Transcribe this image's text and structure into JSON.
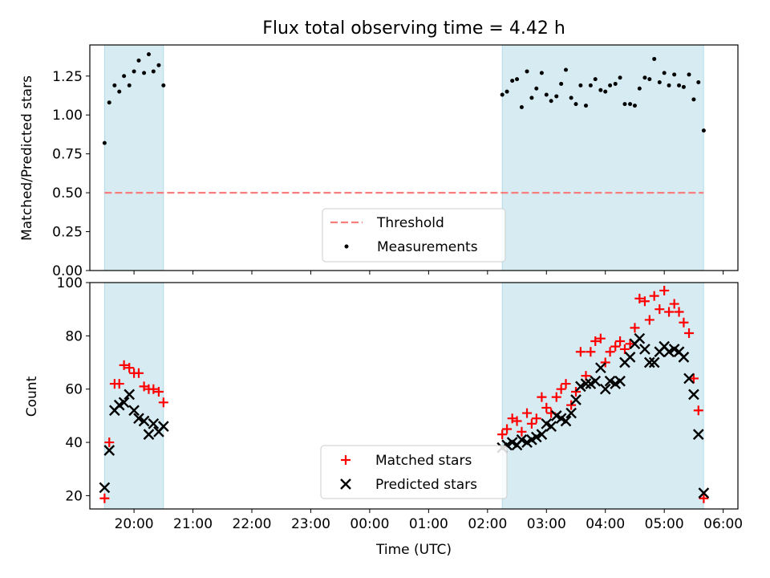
{
  "chart_data": [
    {
      "type": "scatter",
      "title": "Flux total observing time = 4.42 h",
      "xlabel": "",
      "ylabel": "Matched/Predicted stars",
      "xlim": [
        19.25,
        30.25
      ],
      "ylim": [
        0.0,
        1.45
      ],
      "yticks": [
        "0.00",
        "0.25",
        "0.50",
        "0.75",
        "1.00",
        "1.25"
      ],
      "shaded_spans": [
        [
          19.5,
          20.5
        ],
        [
          26.25,
          29.667
        ]
      ],
      "threshold": {
        "name": "Threshold",
        "value": 0.5,
        "x_range": [
          19.5,
          29.667
        ],
        "color": "#f87d7d"
      },
      "series": [
        {
          "name": "Measurements",
          "color": "#000000",
          "points": [
            [
              19.5,
              0.82
            ],
            [
              19.58,
              1.08
            ],
            [
              19.67,
              1.19
            ],
            [
              19.75,
              1.15
            ],
            [
              19.83,
              1.25
            ],
            [
              19.92,
              1.19
            ],
            [
              20.0,
              1.28
            ],
            [
              20.08,
              1.35
            ],
            [
              20.17,
              1.27
            ],
            [
              20.25,
              1.39
            ],
            [
              20.33,
              1.28
            ],
            [
              20.42,
              1.32
            ],
            [
              20.5,
              1.19
            ],
            [
              26.25,
              1.13
            ],
            [
              26.33,
              1.15
            ],
            [
              26.42,
              1.22
            ],
            [
              26.5,
              1.23
            ],
            [
              26.58,
              1.05
            ],
            [
              26.67,
              1.28
            ],
            [
              26.75,
              1.11
            ],
            [
              26.83,
              1.17
            ],
            [
              26.92,
              1.27
            ],
            [
              27.0,
              1.13
            ],
            [
              27.08,
              1.09
            ],
            [
              27.17,
              1.12
            ],
            [
              27.25,
              1.2
            ],
            [
              27.33,
              1.29
            ],
            [
              27.42,
              1.11
            ],
            [
              27.5,
              1.07
            ],
            [
              27.58,
              1.19
            ],
            [
              27.67,
              1.06
            ],
            [
              27.75,
              1.19
            ],
            [
              27.83,
              1.23
            ],
            [
              27.92,
              1.16
            ],
            [
              28.0,
              1.15
            ],
            [
              28.08,
              1.19
            ],
            [
              28.17,
              1.2
            ],
            [
              28.25,
              1.24
            ],
            [
              28.33,
              1.07
            ],
            [
              28.42,
              1.07
            ],
            [
              28.5,
              1.06
            ],
            [
              28.58,
              1.17
            ],
            [
              28.67,
              1.24
            ],
            [
              28.75,
              1.23
            ],
            [
              28.83,
              1.36
            ],
            [
              28.92,
              1.21
            ],
            [
              29.0,
              1.27
            ],
            [
              29.08,
              1.19
            ],
            [
              29.17,
              1.26
            ],
            [
              29.25,
              1.19
            ],
            [
              29.33,
              1.18
            ],
            [
              29.42,
              1.26
            ],
            [
              29.5,
              1.1
            ],
            [
              29.58,
              1.21
            ],
            [
              29.67,
              0.9
            ]
          ]
        }
      ],
      "legend": {
        "position": "lower center",
        "entries": [
          "Threshold",
          "Measurements"
        ]
      }
    },
    {
      "type": "scatter",
      "xlabel": "Time (UTC)",
      "ylabel": "Count",
      "xlim": [
        19.25,
        30.25
      ],
      "ylim": [
        15,
        100
      ],
      "yticks": [
        "20",
        "40",
        "60",
        "80",
        "100"
      ],
      "xticks": [
        {
          "value": 20,
          "label": "20:00"
        },
        {
          "value": 21,
          "label": "21:00"
        },
        {
          "value": 22,
          "label": "22:00"
        },
        {
          "value": 23,
          "label": "23:00"
        },
        {
          "value": 24,
          "label": "00:00"
        },
        {
          "value": 25,
          "label": "01:00"
        },
        {
          "value": 26,
          "label": "02:00"
        },
        {
          "value": 27,
          "label": "03:00"
        },
        {
          "value": 28,
          "label": "04:00"
        },
        {
          "value": 29,
          "label": "05:00"
        },
        {
          "value": 30,
          "label": "06:00"
        }
      ],
      "shaded_spans": [
        [
          19.5,
          20.5
        ],
        [
          26.25,
          29.667
        ]
      ],
      "series": [
        {
          "name": "Matched stars",
          "marker": "+",
          "color": "#ff0000",
          "points": [
            [
              19.5,
              19
            ],
            [
              19.58,
              40
            ],
            [
              19.67,
              62
            ],
            [
              19.75,
              62
            ],
            [
              19.83,
              69
            ],
            [
              19.92,
              68
            ],
            [
              20.0,
              66
            ],
            [
              20.08,
              66
            ],
            [
              20.17,
              61
            ],
            [
              20.25,
              60
            ],
            [
              20.33,
              60
            ],
            [
              20.42,
              59
            ],
            [
              20.5,
              55
            ],
            [
              26.25,
              43
            ],
            [
              26.33,
              45
            ],
            [
              26.42,
              49
            ],
            [
              26.5,
              48
            ],
            [
              26.58,
              44
            ],
            [
              26.67,
              51
            ],
            [
              26.75,
              47
            ],
            [
              26.83,
              49
            ],
            [
              26.92,
              57
            ],
            [
              27.0,
              53
            ],
            [
              27.08,
              51
            ],
            [
              27.17,
              57
            ],
            [
              27.25,
              60
            ],
            [
              27.33,
              62
            ],
            [
              27.42,
              54
            ],
            [
              27.5,
              59
            ],
            [
              27.58,
              74
            ],
            [
              27.67,
              65
            ],
            [
              27.75,
              74
            ],
            [
              27.83,
              78
            ],
            [
              27.92,
              79
            ],
            [
              28.0,
              70
            ],
            [
              28.08,
              74
            ],
            [
              28.17,
              76
            ],
            [
              28.25,
              78
            ],
            [
              28.33,
              75
            ],
            [
              28.42,
              77
            ],
            [
              28.5,
              83
            ],
            [
              28.58,
              94
            ],
            [
              28.67,
              93
            ],
            [
              28.75,
              86
            ],
            [
              28.83,
              95
            ],
            [
              28.92,
              90
            ],
            [
              29.0,
              97
            ],
            [
              29.08,
              89
            ],
            [
              29.17,
              92
            ],
            [
              29.25,
              89
            ],
            [
              29.33,
              85
            ],
            [
              29.42,
              81
            ],
            [
              29.5,
              64
            ],
            [
              29.58,
              52
            ],
            [
              29.67,
              19
            ]
          ]
        },
        {
          "name": "Predicted stars",
          "marker": "x",
          "color": "#000000",
          "points": [
            [
              19.5,
              23
            ],
            [
              19.58,
              37
            ],
            [
              19.67,
              52
            ],
            [
              19.75,
              54
            ],
            [
              19.83,
              55
            ],
            [
              19.92,
              58
            ],
            [
              20.0,
              52
            ],
            [
              20.08,
              49
            ],
            [
              20.17,
              48
            ],
            [
              20.25,
              43
            ],
            [
              20.33,
              47
            ],
            [
              20.42,
              44
            ],
            [
              20.5,
              46
            ],
            [
              26.25,
              38
            ],
            [
              26.33,
              39
            ],
            [
              26.42,
              40
            ],
            [
              26.5,
              39
            ],
            [
              26.58,
              41
            ],
            [
              26.67,
              40
            ],
            [
              26.75,
              41
            ],
            [
              26.83,
              42
            ],
            [
              26.92,
              43
            ],
            [
              27.0,
              47
            ],
            [
              27.08,
              46
            ],
            [
              27.17,
              50
            ],
            [
              27.25,
              49
            ],
            [
              27.33,
              48
            ],
            [
              27.42,
              51
            ],
            [
              27.5,
              56
            ],
            [
              27.58,
              61
            ],
            [
              27.67,
              62
            ],
            [
              27.75,
              62
            ],
            [
              27.83,
              63
            ],
            [
              27.92,
              68
            ],
            [
              28.0,
              60
            ],
            [
              28.08,
              63
            ],
            [
              28.17,
              62
            ],
            [
              28.25,
              63
            ],
            [
              28.33,
              70
            ],
            [
              28.42,
              72
            ],
            [
              28.5,
              77
            ],
            [
              28.58,
              79
            ],
            [
              28.67,
              75
            ],
            [
              28.75,
              70
            ],
            [
              28.83,
              70
            ],
            [
              28.92,
              74
            ],
            [
              29.0,
              76
            ],
            [
              29.08,
              74
            ],
            [
              29.17,
              75
            ],
            [
              29.25,
              74
            ],
            [
              29.33,
              72
            ],
            [
              29.42,
              64
            ],
            [
              29.5,
              58
            ],
            [
              29.58,
              43
            ],
            [
              29.67,
              21
            ]
          ]
        }
      ],
      "legend": {
        "position": "lower center",
        "entries": [
          "Matched stars",
          "Predicted stars"
        ]
      }
    }
  ]
}
